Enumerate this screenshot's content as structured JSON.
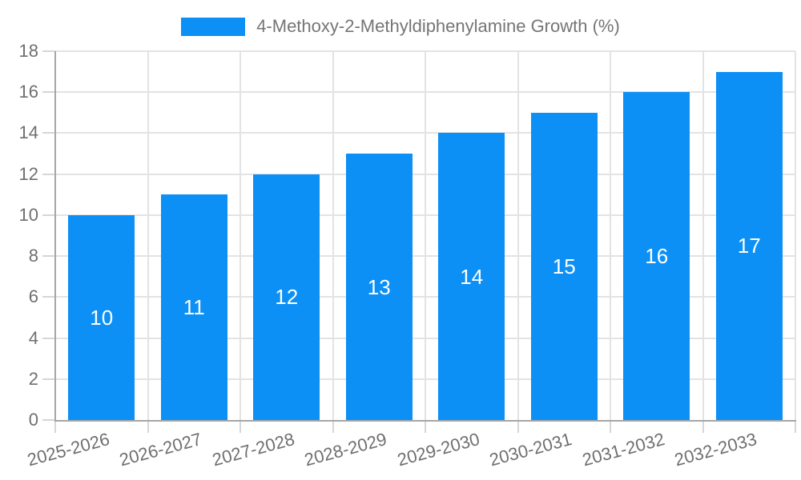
{
  "legend": {
    "label": "4-Methoxy-2-Methyldiphenylamine Growth (%)"
  },
  "colors": {
    "bar": "#0d90f5",
    "axis": "#a6a6a6",
    "grid": "#e3e3e3",
    "tick": "#d6d6d6",
    "tick_label": "#6f6f6f",
    "legend_text": "#757575",
    "value_label": "#ffffff",
    "background": "#ffffff"
  },
  "chart_data": {
    "type": "bar",
    "title": "4-Methoxy-2-Methyldiphenylamine Growth (%)",
    "categories": [
      "2025-2026",
      "2026-2027",
      "2027-2028",
      "2028-2029",
      "2029-2030",
      "2030-2031",
      "2031-2032",
      "2032-2033"
    ],
    "series": [
      {
        "name": "4-Methoxy-2-Methyldiphenylamine Growth (%)",
        "values": [
          10,
          11,
          12,
          13,
          14,
          15,
          16,
          17
        ]
      }
    ],
    "values": [
      10,
      11,
      12,
      13,
      14,
      15,
      16,
      17
    ],
    "bar_labels": [
      "10",
      "11",
      "12",
      "13",
      "14",
      "15",
      "16",
      "17"
    ],
    "xlabel": "",
    "ylabel": "",
    "ylim": [
      0,
      18
    ],
    "ytick_step": 2,
    "yticks": [
      0,
      2,
      4,
      6,
      8,
      10,
      12,
      14,
      16,
      18
    ],
    "grid": "on",
    "legend_position": "top",
    "x_label_rotation_deg": -15
  }
}
